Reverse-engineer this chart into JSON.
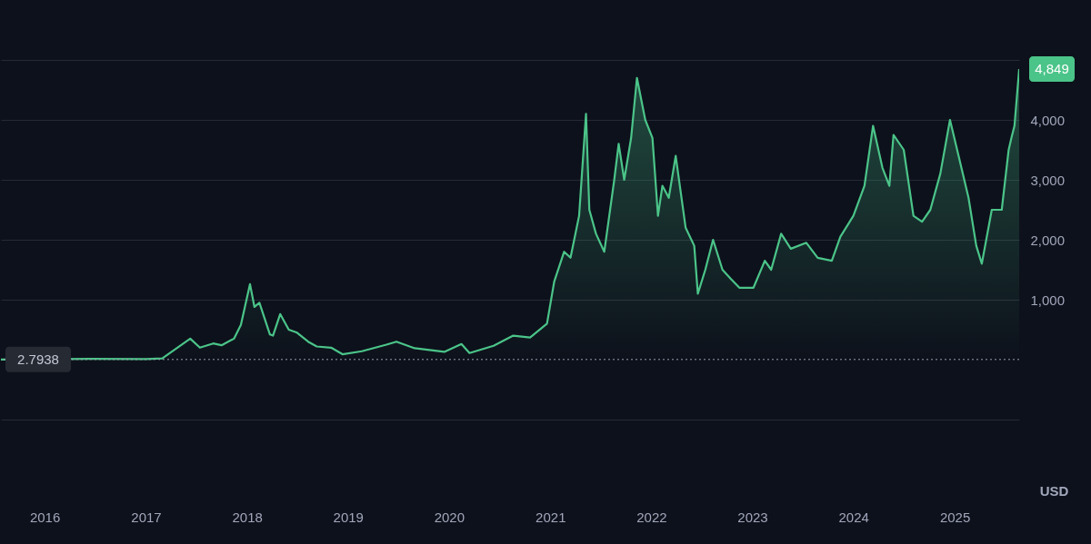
{
  "chart_data": {
    "type": "area",
    "ylabel": "USD",
    "x": [
      "2015-07-27",
      "2016-06-15",
      "2017-01-01",
      "2017-03-01",
      "2017-06-10",
      "2017-07-15",
      "2017-09-01",
      "2017-10-01",
      "2017-11-15",
      "2017-12-10",
      "2018-01-12",
      "2018-01-28",
      "2018-02-15",
      "2018-03-25",
      "2018-04-05",
      "2018-05-01",
      "2018-06-01",
      "2018-07-01",
      "2018-08-10",
      "2018-09-10",
      "2018-11-01",
      "2018-12-12",
      "2019-02-20",
      "2019-05-20",
      "2019-06-25",
      "2019-08-30",
      "2019-12-15",
      "2020-02-15",
      "2020-03-15",
      "2020-06-10",
      "2020-08-20",
      "2020-10-20",
      "2020-12-20",
      "2021-01-15",
      "2021-02-20",
      "2021-03-15",
      "2021-04-15",
      "2021-05-10",
      "2021-05-22",
      "2021-06-15",
      "2021-07-15",
      "2021-08-20",
      "2021-09-05",
      "2021-09-25",
      "2021-10-20",
      "2021-11-10",
      "2021-12-10",
      "2022-01-05",
      "2022-01-25",
      "2022-02-10",
      "2022-03-05",
      "2022-03-30",
      "2022-05-05",
      "2022-06-05",
      "2022-06-18",
      "2022-07-15",
      "2022-08-12",
      "2022-09-15",
      "2022-10-15",
      "2022-11-15",
      "2022-12-20",
      "2023-01-05",
      "2023-02-15",
      "2023-03-10",
      "2023-04-15",
      "2023-05-20",
      "2023-07-15",
      "2023-08-25",
      "2023-10-15",
      "2023-11-15",
      "2024-01-01",
      "2024-02-10",
      "2024-03-12",
      "2024-04-15",
      "2024-05-10",
      "2024-05-25",
      "2024-07-01",
      "2024-08-05",
      "2024-09-05",
      "2024-10-05",
      "2024-11-10",
      "2024-12-15",
      "2025-01-15",
      "2025-02-20",
      "2025-03-20",
      "2025-04-09",
      "2025-05-15",
      "2025-06-20",
      "2025-07-15",
      "2025-07-25",
      "2025-08-05",
      "2025-08-22"
    ],
    "series": [
      {
        "color": "#4bc489",
        "values": [
          3,
          14,
          8,
          20,
          350,
          200,
          270,
          240,
          350,
          580,
          1260,
          880,
          950,
          420,
          400,
          760,
          500,
          450,
          300,
          220,
          200,
          90,
          140,
          250,
          300,
          190,
          130,
          260,
          110,
          230,
          400,
          370,
          600,
          1300,
          1800,
          1700,
          2400,
          4100,
          2500,
          2100,
          1800,
          3000,
          3600,
          3000,
          3700,
          4700,
          4000,
          3700,
          2400,
          2900,
          2700,
          3400,
          2200,
          1900,
          1100,
          1500,
          2000,
          1500,
          1350,
          1200,
          1200,
          1200,
          1650,
          1500,
          2100,
          1850,
          1950,
          1700,
          1650,
          2050,
          2400,
          2900,
          3900,
          3200,
          2900,
          3750,
          3500,
          2400,
          2300,
          2500,
          3100,
          4000,
          3400,
          2700,
          1900,
          1600,
          2500,
          2500,
          3500,
          3700,
          3900,
          4849
        ]
      }
    ],
    "xlim": [
      "2015-07-27",
      "2025-08-22"
    ],
    "xticks": [
      "2016",
      "2017",
      "2018",
      "2019",
      "2020",
      "2021",
      "2022",
      "2023",
      "2024",
      "2025"
    ],
    "ylim": [
      -1000,
      6000
    ],
    "yticks": [
      {
        "value": -1000,
        "label": null
      },
      {
        "value": 1000,
        "label": "1,000"
      },
      {
        "value": 2000,
        "label": "2,000"
      },
      {
        "value": 3000,
        "label": "3,000"
      },
      {
        "value": 4000,
        "label": "4,000"
      },
      {
        "value": 5000,
        "label": null
      }
    ],
    "grid": "y",
    "marker": "none",
    "line_style": "solid",
    "ref_lines": [
      {
        "axis": "y",
        "value": 2.7938,
        "label": "2.7938",
        "line_style": "dotted",
        "color": "#9aa0b0"
      }
    ],
    "annotations": [
      {
        "text": "4,849",
        "x": "2025-08-22",
        "y": 4849
      }
    ]
  }
}
